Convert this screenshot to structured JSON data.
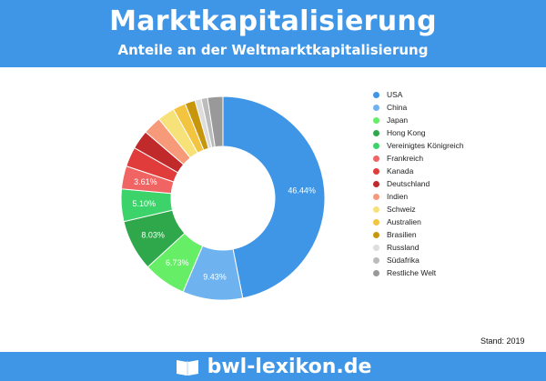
{
  "header": {
    "title": "Marktkapitalisierung",
    "subtitle": "Anteile an der Weltmarktkapitalisierung"
  },
  "chart_data": {
    "type": "pie",
    "title": "Marktkapitalisierung",
    "subtitle": "Anteile an der Weltmarktkapitalisierung",
    "legend_position": "right",
    "slices": [
      {
        "label": "USA",
        "value": 46.44,
        "value_label": "46.44%",
        "color": "#3f96e6"
      },
      {
        "label": "China",
        "value": 9.43,
        "value_label": "9.43%",
        "color": "#6eb3f0"
      },
      {
        "label": "Japan",
        "value": 6.73,
        "value_label": "6.73%",
        "color": "#66ee66"
      },
      {
        "label": "Hong Kong",
        "value": 8.03,
        "value_label": "8.03%",
        "color": "#2ea84a"
      },
      {
        "label": "Vereinigtes Königreich",
        "value": 5.1,
        "value_label": "5.10%",
        "color": "#3cd46a"
      },
      {
        "label": "Frankreich",
        "value": 3.61,
        "value_label": "3.61%",
        "color": "#f06464"
      },
      {
        "label": "Kanada",
        "value": 3.1,
        "value_label": "",
        "color": "#e03c3c"
      },
      {
        "label": "Deutschland",
        "value": 3.0,
        "value_label": "",
        "color": "#c02a2a"
      },
      {
        "label": "Indien",
        "value": 2.9,
        "value_label": "",
        "color": "#f79a7a"
      },
      {
        "label": "Schweiz",
        "value": 2.7,
        "value_label": "",
        "color": "#f7e27a"
      },
      {
        "label": "Australien",
        "value": 2.0,
        "value_label": "",
        "color": "#f2c440"
      },
      {
        "label": "Brasilien",
        "value": 1.6,
        "value_label": "",
        "color": "#c8960c"
      },
      {
        "label": "Russland",
        "value": 1.0,
        "value_label": "",
        "color": "#dddddd"
      },
      {
        "label": "Südafrika",
        "value": 1.0,
        "value_label": "",
        "color": "#bbbbbb"
      },
      {
        "label": "Restliche Welt",
        "value": 2.4,
        "value_label": "",
        "color": "#999999"
      }
    ]
  },
  "footnote": "Stand: 2019",
  "footer": {
    "brand": "bwl-lexikon.de",
    "logo_icon": "open-book-icon"
  }
}
